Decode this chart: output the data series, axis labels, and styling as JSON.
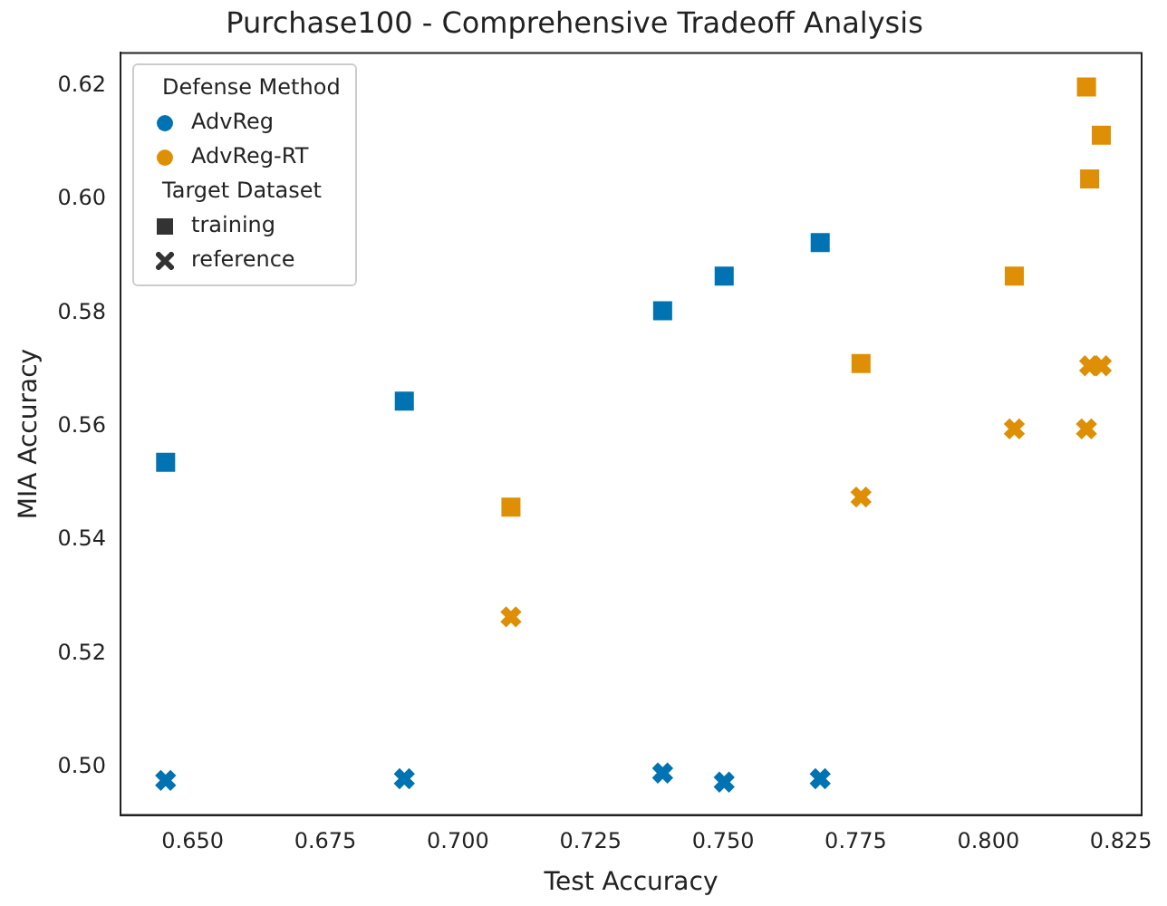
{
  "chart_data": {
    "type": "scatter",
    "title": "Purchase100 - Comprehensive Tradeoff Analysis",
    "xlabel": "Test Accuracy",
    "ylabel": "MIA Accuracy",
    "legend_title": "Defense Method",
    "legend": "top left",
    "grid": false,
    "annotations": [
      "Target Dataset",
      "training",
      "reference"
    ],
    "xlim": [
      0.6364,
      0.8289
    ],
    "ylim": [
      0.4916,
      0.6258
    ],
    "xticks": [
      {
        "value": 0.65,
        "label": "0.650"
      },
      {
        "value": 0.675,
        "label": "0.675"
      },
      {
        "value": 0.7,
        "label": "0.700"
      },
      {
        "value": 0.725,
        "label": "0.725"
      },
      {
        "value": 0.75,
        "label": "0.750"
      },
      {
        "value": 0.775,
        "label": "0.775"
      },
      {
        "value": 0.8,
        "label": "0.800"
      },
      {
        "value": 0.825,
        "label": "0.825"
      }
    ],
    "yticks": [
      {
        "value": 0.5,
        "label": "0.50"
      },
      0.52,
      0.54,
      0.56,
      0.58,
      {
        "value": 0.6,
        "label": "0.60"
      },
      0.62
    ],
    "series": [
      {
        "name": "AdvReg",
        "marker": "square",
        "color": "#0173b2",
        "x": [
          0.6449,
          0.6899,
          0.7386,
          0.7502,
          0.7683
        ],
        "values": [
          0.5537,
          0.5645,
          0.5804,
          0.5865,
          0.5924
        ]
      },
      {
        "name": "AdvReg-RT",
        "marker": "square",
        "color": "#de8f05",
        "x": [
          0.71,
          0.776,
          0.8049,
          0.8185,
          0.8213,
          0.8191
        ],
        "values": [
          0.5458,
          0.5711,
          0.5865,
          0.6198,
          0.6113,
          0.6036
        ]
      },
      {
        "marker": "cross",
        "color": "#0173b2",
        "x": [
          0.6449,
          0.6899,
          0.7386,
          0.7502,
          0.7683
        ],
        "values": [
          0.4977,
          0.498,
          0.499,
          0.4974,
          0.498
        ]
      },
      {
        "marker": "cross",
        "color": "#de8f05",
        "x": [
          0.71,
          0.776,
          0.8049,
          0.8185,
          0.8191,
          0.8213
        ],
        "values": [
          0.5265,
          0.5476,
          0.5596,
          0.5596,
          0.5707,
          0.5707
        ]
      }
    ]
  }
}
